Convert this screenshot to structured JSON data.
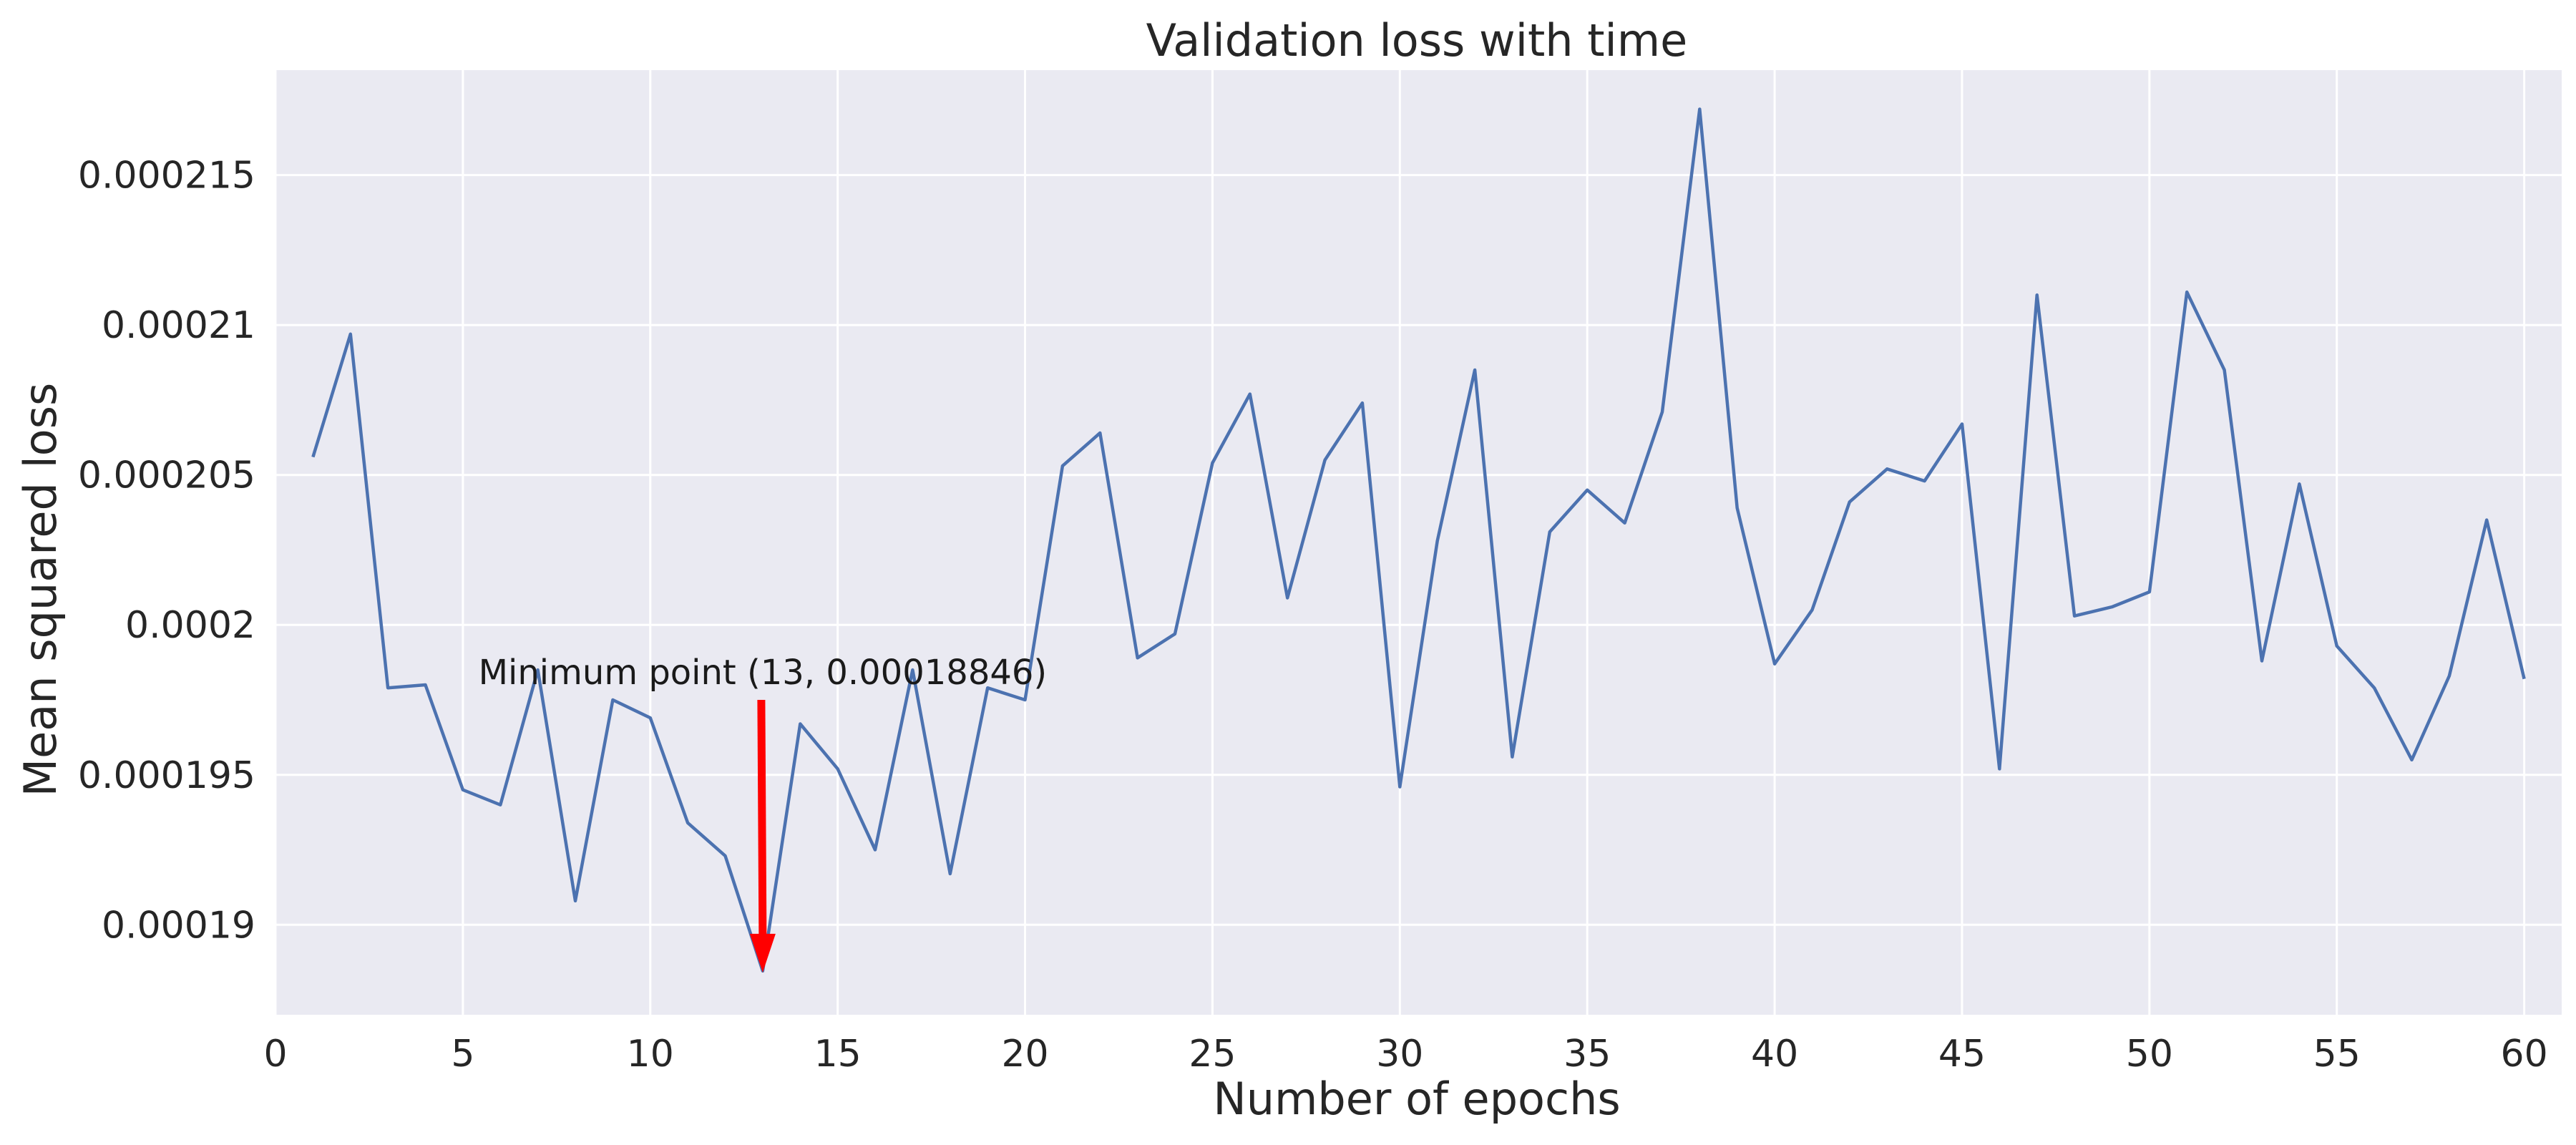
{
  "chart_data": {
    "type": "line",
    "title": "Validation loss with time",
    "xlabel": "Number of epochs",
    "ylabel": "Mean squared loss",
    "xlim": [
      0,
      61
    ],
    "ylim": [
      0.000187,
      0.0002185
    ],
    "xticks": [
      0,
      5,
      10,
      15,
      20,
      25,
      30,
      35,
      40,
      45,
      50,
      55,
      60
    ],
    "xtick_labels": [
      "0",
      "5",
      "10",
      "15",
      "20",
      "25",
      "30",
      "35",
      "40",
      "45",
      "50",
      "55",
      "60"
    ],
    "yticks": [
      0.00019,
      0.000195,
      0.0002,
      0.000205,
      0.00021,
      0.000215
    ],
    "ytick_labels": [
      "0.00019",
      "0.000195",
      "0.0002",
      "0.000205",
      "0.00021",
      "0.000215"
    ],
    "grid": true,
    "background_color": "#eaeaf2",
    "series": [
      {
        "color": "#4c72b0",
        "x": [
          1,
          2,
          3,
          4,
          5,
          6,
          7,
          8,
          9,
          10,
          11,
          12,
          13,
          14,
          15,
          16,
          17,
          18,
          19,
          20,
          21,
          22,
          23,
          24,
          25,
          26,
          27,
          28,
          29,
          30,
          31,
          32,
          33,
          34,
          35,
          36,
          37,
          38,
          39,
          40,
          41,
          42,
          43,
          44,
          45,
          46,
          47,
          48,
          49,
          50,
          51,
          52,
          53,
          54,
          55,
          56,
          57,
          58,
          59,
          60
        ],
        "y": [
          0.0002056,
          0.0002097,
          0.0001979,
          0.000198,
          0.0001945,
          0.000194,
          0.0001985,
          0.0001908,
          0.0001975,
          0.0001969,
          0.0001934,
          0.0001923,
          0.00018846,
          0.0001967,
          0.0001952,
          0.0001925,
          0.0001985,
          0.0001917,
          0.0001979,
          0.0001975,
          0.0002053,
          0.0002064,
          0.0001989,
          0.0001997,
          0.0002054,
          0.0002077,
          0.0002009,
          0.0002055,
          0.0002074,
          0.0001946,
          0.0002028,
          0.0002085,
          0.0001956,
          0.0002031,
          0.0002045,
          0.0002034,
          0.0002071,
          0.0002172,
          0.0002039,
          0.0001987,
          0.0002005,
          0.0002041,
          0.0002052,
          0.0002048,
          0.0002067,
          0.0001952,
          0.000211,
          0.0002003,
          0.0002006,
          0.0002011,
          0.0002111,
          0.0002085,
          0.0001988,
          0.0002047,
          0.0001993,
          0.0001979,
          0.0001955,
          0.0001983,
          0.0002035,
          0.0001982
        ]
      }
    ],
    "annotation": {
      "text": "Minimum point (13, 0.00018846)",
      "arrow_color": "#ff0000",
      "point": [
        13,
        0.00018846
      ],
      "text_anchor": [
        13,
        0.0001975
      ]
    }
  }
}
